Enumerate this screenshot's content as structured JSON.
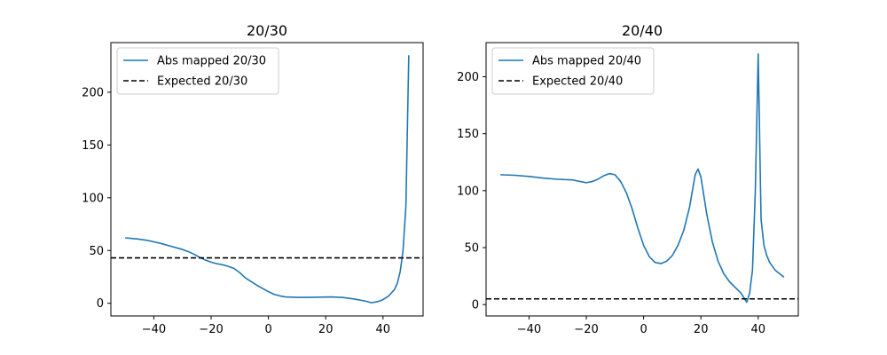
{
  "chart_data": [
    {
      "type": "line",
      "title": "20/30",
      "xlabel": "",
      "ylabel": "",
      "xlim": [
        -55,
        54
      ],
      "ylim": [
        -12,
        247
      ],
      "xticks": [
        -40,
        -20,
        0,
        20,
        40
      ],
      "yticks": [
        0,
        50,
        100,
        150,
        200
      ],
      "legend_position": "top-left",
      "series": [
        {
          "name": "Abs mapped 20/30",
          "color": "#1f77b4",
          "style": "solid",
          "x": [
            -50,
            -46,
            -42,
            -38,
            -34,
            -30,
            -28,
            -26,
            -24,
            -22,
            -20,
            -18,
            -16,
            -14,
            -12,
            -10,
            -8,
            -6,
            -4,
            -2,
            0,
            2,
            4,
            6,
            8,
            10,
            14,
            18,
            22,
            26,
            30,
            34,
            36,
            38,
            40,
            42,
            44,
            45,
            46,
            47,
            48,
            49
          ],
          "y": [
            62,
            61,
            59.5,
            57,
            54,
            51,
            49,
            46.5,
            43.5,
            41,
            39,
            37.5,
            36.5,
            35,
            33,
            29,
            24,
            20.5,
            17,
            14,
            11,
            8.5,
            7,
            6,
            5.8,
            5.6,
            5.6,
            5.8,
            6,
            5.5,
            4,
            2,
            0.5,
            1.5,
            3.5,
            7,
            13,
            19,
            30,
            50,
            92,
            235
          ]
        },
        {
          "name": "Expected 20/30",
          "color": "#000000",
          "style": "dashed",
          "constant": 43
        }
      ]
    },
    {
      "type": "line",
      "title": "20/40",
      "xlabel": "",
      "ylabel": "",
      "xlim": [
        -55,
        54
      ],
      "ylim": [
        -10,
        230
      ],
      "xticks": [
        -40,
        -20,
        0,
        20,
        40
      ],
      "yticks": [
        0,
        50,
        100,
        150,
        200
      ],
      "legend_position": "top-left",
      "series": [
        {
          "name": "Abs mapped 20/40",
          "color": "#1f77b4",
          "style": "solid",
          "x": [
            -50,
            -45,
            -40,
            -35,
            -30,
            -25,
            -22,
            -20,
            -18,
            -16,
            -14,
            -12,
            -10,
            -8,
            -6,
            -4,
            -2,
            0,
            2,
            4,
            6,
            8,
            10,
            12,
            14,
            16,
            18,
            19,
            20,
            22,
            24,
            26,
            28,
            30,
            32,
            34,
            35,
            36,
            37,
            38,
            39,
            40,
            41,
            42,
            43,
            44,
            46,
            49
          ],
          "y": [
            114,
            113.5,
            112.5,
            111,
            110,
            109.5,
            108,
            107,
            108,
            110,
            113,
            115,
            114,
            108,
            98,
            84,
            67,
            52,
            42,
            37,
            36,
            38,
            43,
            52,
            65,
            85,
            114,
            119,
            112,
            80,
            55,
            38,
            27,
            20,
            15,
            10,
            6,
            2,
            10,
            30,
            100,
            220,
            75,
            52,
            43,
            37,
            30,
            24
          ]
        },
        {
          "name": "Expected 20/40",
          "color": "#000000",
          "style": "dashed",
          "constant": 5
        }
      ]
    }
  ]
}
